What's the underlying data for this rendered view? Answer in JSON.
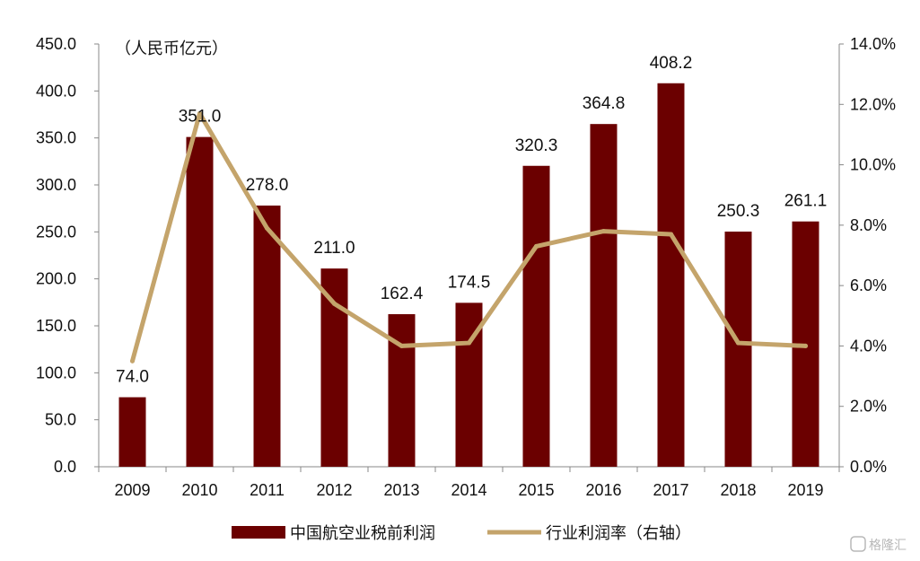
{
  "chart_data": {
    "type": "bar",
    "categories": [
      "2009",
      "2010",
      "2011",
      "2012",
      "2013",
      "2014",
      "2015",
      "2016",
      "2017",
      "2018",
      "2019"
    ],
    "series": [
      {
        "name": "中国航空业税前利润",
        "type": "bar",
        "axis": "left",
        "color": "#6b0000",
        "values": [
          74.0,
          351.0,
          278.0,
          211.0,
          162.4,
          174.5,
          320.3,
          364.8,
          408.2,
          250.3,
          261.1
        ],
        "labels": [
          "74.0",
          "351.0",
          "278.0",
          "211.0",
          "162.4",
          "174.5",
          "320.3",
          "364.8",
          "408.2",
          "250.3",
          "261.1"
        ]
      },
      {
        "name": "行业利润率（右轴）",
        "type": "line",
        "axis": "right",
        "color": "#c4a46b",
        "values": [
          3.5,
          11.7,
          7.9,
          5.4,
          4.0,
          4.1,
          7.3,
          7.8,
          7.7,
          4.1,
          4.0
        ]
      }
    ],
    "y_left": {
      "range": [
        0,
        450
      ],
      "ticks": [
        "0.0",
        "50.0",
        "100.0",
        "150.0",
        "200.0",
        "250.0",
        "300.0",
        "350.0",
        "400.0",
        "450.0"
      ],
      "unit_label": "（人民币亿元）"
    },
    "y_right": {
      "range": [
        0,
        14
      ],
      "ticks": [
        "0.0%",
        "2.0%",
        "4.0%",
        "6.0%",
        "8.0%",
        "10.0%",
        "12.0%",
        "14.0%"
      ]
    },
    "grid": false,
    "legend_position": "bottom"
  },
  "legend": {
    "bar_label": "中国航空业税前利润",
    "line_label": "行业利润率（右轴）"
  },
  "watermark": "格隆汇"
}
